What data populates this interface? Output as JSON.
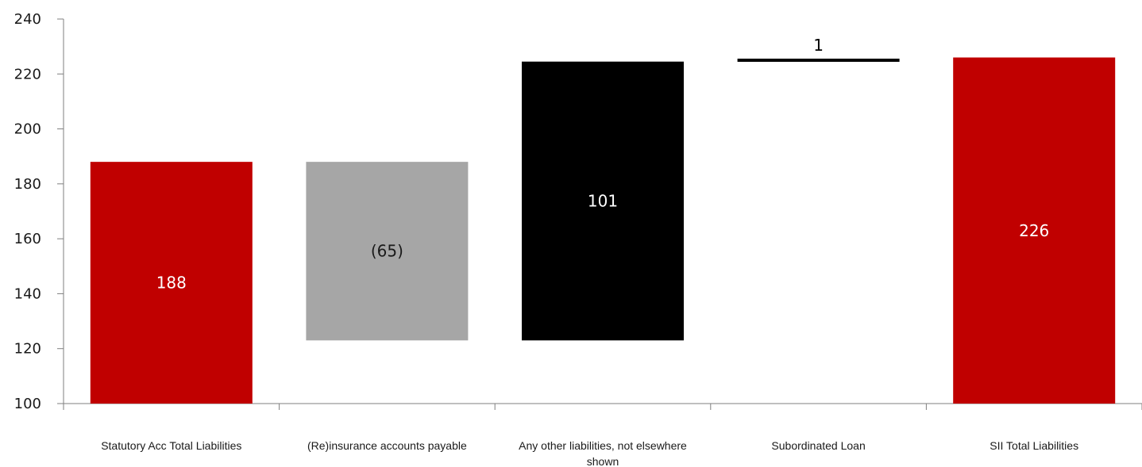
{
  "chart_data": {
    "type": "bar",
    "subtype": "waterfall",
    "title": "",
    "xlabel": "",
    "ylabel": "",
    "ylim": [
      100,
      240
    ],
    "yticks": [
      100,
      120,
      140,
      160,
      180,
      200,
      220,
      240
    ],
    "grid": false,
    "legend": "none",
    "categories": [
      [
        "Statutory Acc Total Liabilities"
      ],
      [
        "(Re)insurance accounts payable"
      ],
      [
        "Any other liabilities, not elsewhere",
        "shown"
      ],
      [
        "Subordinated Loan"
      ],
      [
        "SII Total Liabilities"
      ]
    ],
    "bars": [
      {
        "kind": "total",
        "start": 100,
        "end": 188,
        "label": "188",
        "color": "#c00000",
        "label_color": "#ffffff"
      },
      {
        "kind": "delta",
        "start": 188,
        "end": 123,
        "label": "(65)",
        "color": "#a6a6a6",
        "label_color": "#1a1a1a"
      },
      {
        "kind": "delta",
        "start": 123,
        "end": 224.5,
        "label": "101",
        "color": "#000000",
        "label_color": "#ffffff"
      },
      {
        "kind": "delta",
        "start": 224.5,
        "end": 225.5,
        "label": "1",
        "color": "#000000",
        "label_color": "#000000"
      },
      {
        "kind": "total",
        "start": 100,
        "end": 226,
        "label": "226",
        "color": "#c00000",
        "label_color": "#ffffff"
      }
    ]
  }
}
